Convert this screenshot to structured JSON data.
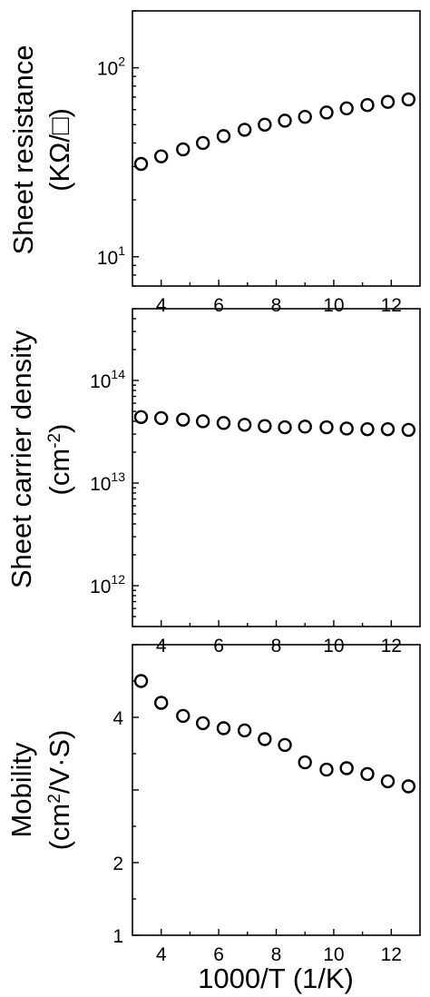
{
  "chart_data": [
    {
      "type": "scatter",
      "ylabel": "Sheet resistance",
      "ylabel_unit": "(KΩ/□)",
      "yscale": "log",
      "ylim": [
        7,
        200
      ],
      "xlim": [
        3,
        13
      ],
      "x_ticks": [
        "4",
        "6",
        "8",
        "10",
        "12"
      ],
      "y_ticks": [
        {
          "base": "10",
          "exp": "1",
          "value": 10
        },
        {
          "base": "10",
          "exp": "2",
          "value": 100
        }
      ],
      "x": [
        3.3,
        4.0,
        4.76,
        5.45,
        6.17,
        6.9,
        7.6,
        8.3,
        9.0,
        9.75,
        10.45,
        11.17,
        11.88,
        12.6
      ],
      "y": [
        31,
        34,
        37,
        40,
        43.5,
        47,
        50,
        52.5,
        55,
        58,
        61,
        63.5,
        66,
        68
      ]
    },
    {
      "type": "scatter",
      "ylabel": "Sheet carrier density",
      "ylabel_unit": "(cm-2)",
      "yscale": "log",
      "ylim": [
        400000000000,
        500000000000000
      ],
      "xlim": [
        3,
        13
      ],
      "x_ticks": [
        "4",
        "6",
        "8",
        "10",
        "12"
      ],
      "y_ticks": [
        {
          "base": "10",
          "exp": "12",
          "value": 1000000000000.0
        },
        {
          "base": "10",
          "exp": "13",
          "value": 10000000000000.0
        },
        {
          "base": "10",
          "exp": "14",
          "value": 100000000000000.0
        }
      ],
      "x": [
        3.3,
        4.0,
        4.76,
        5.45,
        6.17,
        6.9,
        7.6,
        8.3,
        9.0,
        9.75,
        10.45,
        11.17,
        11.88,
        12.6
      ],
      "y": [
        44000000000000,
        43000000000000,
        41500000000000,
        40000000000000,
        38500000000000,
        37000000000000,
        36000000000000,
        35000000000000,
        35500000000000,
        35000000000000,
        34000000000000,
        33500000000000,
        33500000000000,
        33000000000000
      ]
    },
    {
      "type": "scatter",
      "ylabel": "Mobility",
      "ylabel_unit": "(cm2/V·S)",
      "yscale": "linear",
      "ylim": [
        1,
        5
      ],
      "xlim": [
        3,
        13
      ],
      "x_ticks": [
        "4",
        "6",
        "8",
        "10",
        "12"
      ],
      "y_ticks": [
        {
          "label": "1",
          "value": 1
        },
        {
          "label": "2",
          "value": 2
        },
        {
          "label": "4",
          "value": 4
        }
      ],
      "x": [
        3.3,
        4.0,
        4.76,
        5.45,
        6.17,
        6.9,
        7.6,
        8.3,
        9.0,
        9.75,
        10.45,
        11.17,
        11.88,
        12.6
      ],
      "y": [
        4.5,
        4.2,
        4.02,
        3.92,
        3.85,
        3.82,
        3.7,
        3.62,
        3.38,
        3.28,
        3.3,
        3.22,
        3.12,
        3.05
      ]
    }
  ],
  "xlabel": "1000/T (1/K)"
}
